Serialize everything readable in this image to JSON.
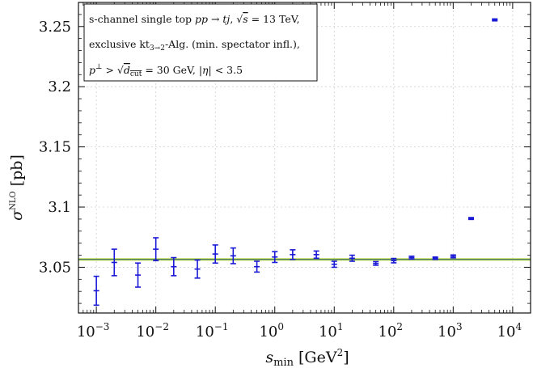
{
  "chart_data": {
    "type": "scatter",
    "xscale": "log",
    "xlim": [
      0.0005,
      20000
    ],
    "ylim": [
      3.012,
      3.27
    ],
    "grid": true,
    "xlabel_main": "s",
    "xlabel_sub": "min",
    "xlabel_unit_open": " [GeV",
    "xlabel_unit_sup": "2",
    "xlabel_unit_close": "]",
    "ylabel_main": "σ",
    "ylabel_sup": "NLO",
    "ylabel_unit": " [pb]",
    "x_ticks": [
      {
        "value": 0.001,
        "base": "10",
        "exp": "−3"
      },
      {
        "value": 0.01,
        "base": "10",
        "exp": "−2"
      },
      {
        "value": 0.1,
        "base": "10",
        "exp": "−1"
      },
      {
        "value": 1,
        "base": "10",
        "exp": "0"
      },
      {
        "value": 10,
        "base": "10",
        "exp": "1"
      },
      {
        "value": 100,
        "base": "10",
        "exp": "2"
      },
      {
        "value": 1000,
        "base": "10",
        "exp": "3"
      },
      {
        "value": 10000,
        "base": "10",
        "exp": "4"
      }
    ],
    "y_ticks": [
      {
        "value": 3.05,
        "label": "3.05"
      },
      {
        "value": 3.1,
        "label": "3.1"
      },
      {
        "value": 3.15,
        "label": "3.15"
      },
      {
        "value": 3.2,
        "label": "3.2"
      },
      {
        "value": 3.25,
        "label": "3.25"
      }
    ],
    "reference": {
      "value": 3.0565,
      "band": [
        3.0555,
        3.0575
      ],
      "band_color": "#b5d931",
      "line_color": "#2a5a7a"
    },
    "points": [
      {
        "x": 0.001,
        "y": 3.0305,
        "err": 0.012
      },
      {
        "x": 0.002,
        "y": 3.054,
        "err": 0.011
      },
      {
        "x": 0.005,
        "y": 3.0435,
        "err": 0.01
      },
      {
        "x": 0.01,
        "y": 3.065,
        "err": 0.0095
      },
      {
        "x": 0.02,
        "y": 3.0505,
        "err": 0.0075
      },
      {
        "x": 0.05,
        "y": 3.0485,
        "err": 0.0075
      },
      {
        "x": 0.1,
        "y": 3.061,
        "err": 0.0075
      },
      {
        "x": 0.2,
        "y": 3.0595,
        "err": 0.0065
      },
      {
        "x": 0.5,
        "y": 3.0505,
        "err": 0.0045
      },
      {
        "x": 1,
        "y": 3.0585,
        "err": 0.0045
      },
      {
        "x": 2,
        "y": 3.0605,
        "err": 0.004
      },
      {
        "x": 5,
        "y": 3.0605,
        "err": 0.003
      },
      {
        "x": 10,
        "y": 3.0525,
        "err": 0.0025
      },
      {
        "x": 20,
        "y": 3.0575,
        "err": 0.0025
      },
      {
        "x": 50,
        "y": 3.0532,
        "err": 0.0015
      },
      {
        "x": 100,
        "y": 3.0555,
        "err": 0.0018
      },
      {
        "x": 200,
        "y": 3.058,
        "err": 0.0012
      },
      {
        "x": 500,
        "y": 3.0575,
        "err": 0.001
      },
      {
        "x": 1000,
        "y": 3.059,
        "err": 0.0012
      },
      {
        "x": 2000,
        "y": 3.0905,
        "err": 0.0008
      },
      {
        "x": 5000,
        "y": 3.2555,
        "err": 0.0008
      }
    ],
    "point_color": "#1a1ad6",
    "legend": {
      "placement": "top-left",
      "line1": {
        "a": "s-channel single top  ",
        "b": "pp → tj",
        "c": ",  ",
        "d": "s",
        "e": " = 13 TeV,"
      },
      "line2": {
        "a": "exclusive kt",
        "b": "3→2",
        "c": "-Alg. (min. spectator infl.),"
      },
      "line3": {
        "a": "p",
        "b": "⊥",
        "c": " > ",
        "d": "d",
        "e": "cut",
        "f": " = 30 GeV,  ",
        "g": "|η|",
        "h": " < 3.5"
      }
    }
  }
}
